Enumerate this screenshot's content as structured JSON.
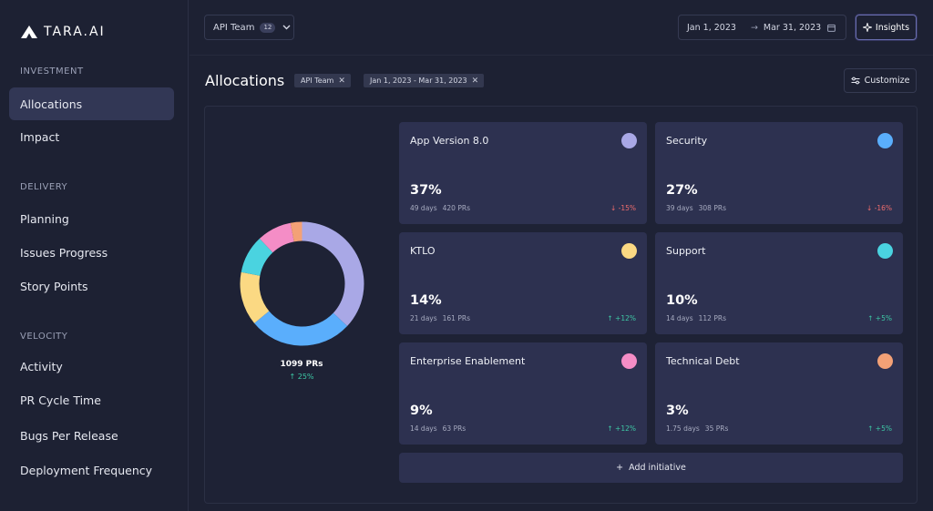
{
  "app": {
    "logo_text": "TARA.AI"
  },
  "sidebar": {
    "sections": [
      {
        "label": "INVESTMENT"
      },
      {
        "label": "DELIVERY"
      },
      {
        "label": "VELOCITY"
      }
    ],
    "items": [
      {
        "label": "Allocations",
        "active": true
      },
      {
        "label": "Impact"
      },
      {
        "label": "Planning"
      },
      {
        "label": "Issues Progress"
      },
      {
        "label": "Story Points"
      },
      {
        "label": "Activity"
      },
      {
        "label": "PR Cycle Time"
      },
      {
        "label": "Bugs Per Release"
      },
      {
        "label": "Deployment Frequency"
      }
    ]
  },
  "topbar": {
    "team_label": "API Team",
    "team_count": "12",
    "date_start": "Jan 1, 2023",
    "date_end": "Mar 31, 2023",
    "insights_label": "Insights"
  },
  "header": {
    "title": "Allocations",
    "filters": [
      {
        "label": "API Team"
      },
      {
        "label": "Jan 1, 2023 - Mar 31, 2023"
      }
    ],
    "customize_label": "Customize"
  },
  "summary": {
    "total_prs": "1099 PRs",
    "change": "↑ 25%"
  },
  "initiatives": [
    {
      "name": "App Version 8.0",
      "percent": "37%",
      "days": "49 days",
      "prs": "420 PRs",
      "change": "↓ -15%",
      "direction": "down",
      "color": "#a9a8e6"
    },
    {
      "name": "Security",
      "percent": "27%",
      "days": "39 days",
      "prs": "308 PRs",
      "change": "↓ -16%",
      "direction": "down",
      "color": "#5aaefc"
    },
    {
      "name": "KTLO",
      "percent": "14%",
      "days": "21 days",
      "prs": "161 PRs",
      "change": "↑ +12%",
      "direction": "up",
      "color": "#fbd983"
    },
    {
      "name": "Support",
      "percent": "10%",
      "days": "14 days",
      "prs": "112 PRs",
      "change": "↑ +5%",
      "direction": "up",
      "color": "#4ad3e0"
    },
    {
      "name": "Enterprise Enablement",
      "percent": "9%",
      "days": "14 days",
      "prs": "63 PRs",
      "change": "↑ +12%",
      "direction": "up",
      "color": "#f48dc6"
    },
    {
      "name": "Technical Debt",
      "percent": "3%",
      "days": "1.75 days",
      "prs": "35 PRs",
      "change": "↑ +5%",
      "direction": "up",
      "color": "#f3a176"
    }
  ],
  "add_initiative_label": "Add initiative",
  "chart_data": {
    "type": "pie",
    "categories": [
      "App Version 8.0",
      "Security",
      "KTLO",
      "Support",
      "Enterprise Enablement",
      "Technical Debt"
    ],
    "values": [
      37,
      27,
      14,
      10,
      9,
      3
    ],
    "colors": [
      "#a9a8e6",
      "#5aaefc",
      "#fbd983",
      "#4ad3e0",
      "#f48dc6",
      "#f3a176"
    ]
  }
}
